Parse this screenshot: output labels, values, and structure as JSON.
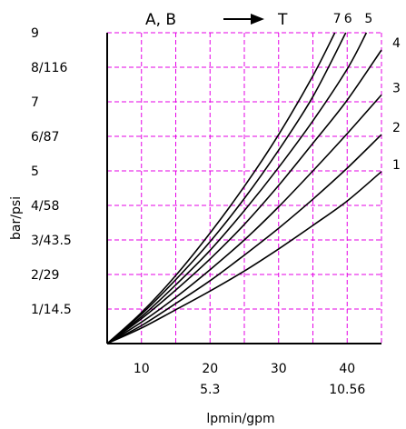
{
  "chart_data": {
    "type": "line",
    "title_left": "A,  B",
    "title_right": "T",
    "ylabel": "bar/psi",
    "xlabel": "lpmin/gpm",
    "xlim": [
      5,
      45
    ],
    "ylim": [
      0,
      9
    ],
    "x_ticks": [
      {
        "value": 10,
        "label": "10",
        "sublabel": ""
      },
      {
        "value": 20,
        "label": "20",
        "sublabel": "5.3"
      },
      {
        "value": 30,
        "label": "30",
        "sublabel": ""
      },
      {
        "value": 40,
        "label": "40",
        "sublabel": "10.56"
      }
    ],
    "x_grid": [
      10,
      15,
      20,
      25,
      30,
      35,
      40,
      45
    ],
    "y_ticks": [
      {
        "value": 1,
        "label": "1/14.5"
      },
      {
        "value": 2,
        "label": "2/29"
      },
      {
        "value": 3,
        "label": "3/43.5"
      },
      {
        "value": 4,
        "label": "4/58"
      },
      {
        "value": 5,
        "label": "5"
      },
      {
        "value": 6,
        "label": "6/87"
      },
      {
        "value": 7,
        "label": "7"
      },
      {
        "value": 8,
        "label": "8/116"
      },
      {
        "value": 9,
        "label": "9"
      }
    ],
    "grid": true,
    "grid_color": "#e600e6",
    "axis_color": "#000000",
    "curve_color": "#000000",
    "series": [
      {
        "name": "1",
        "x": [
          5,
          10,
          15,
          20,
          25,
          30,
          35,
          40,
          45
        ],
        "y": [
          0,
          0.45,
          0.98,
          1.52,
          2.1,
          2.74,
          3.42,
          4.13,
          4.98
        ]
      },
      {
        "name": "2",
        "x": [
          5,
          10,
          15,
          20,
          25,
          30,
          35,
          40,
          45
        ],
        "y": [
          0,
          0.52,
          1.16,
          1.82,
          2.56,
          3.34,
          4.18,
          5.08,
          6.05
        ]
      },
      {
        "name": "3",
        "x": [
          5,
          10,
          15,
          20,
          25,
          30,
          35,
          40,
          45
        ],
        "y": [
          0,
          0.62,
          1.34,
          2.14,
          3.0,
          3.96,
          5.0,
          6.08,
          7.2
        ]
      },
      {
        "name": "4",
        "x": [
          5,
          10,
          15,
          20,
          25,
          30,
          35,
          40,
          45
        ],
        "y": [
          0,
          0.72,
          1.55,
          2.45,
          3.45,
          4.58,
          5.8,
          7.05,
          8.5
        ]
      },
      {
        "name": "5",
        "x": [
          5,
          10,
          15,
          20,
          25,
          30,
          35,
          40,
          42.8
        ],
        "y": [
          0,
          0.78,
          1.7,
          2.7,
          3.85,
          5.1,
          6.45,
          7.95,
          9.0
        ]
      },
      {
        "name": "6",
        "x": [
          5,
          10,
          15,
          20,
          25,
          30,
          35,
          39.8
        ],
        "y": [
          0,
          0.85,
          1.85,
          2.95,
          4.2,
          5.6,
          7.15,
          9.0
        ]
      },
      {
        "name": "7",
        "x": [
          5,
          10,
          15,
          20,
          25,
          30,
          35,
          38.2
        ],
        "y": [
          0,
          0.9,
          1.97,
          3.2,
          4.55,
          6.05,
          7.75,
          9.0
        ]
      }
    ]
  }
}
